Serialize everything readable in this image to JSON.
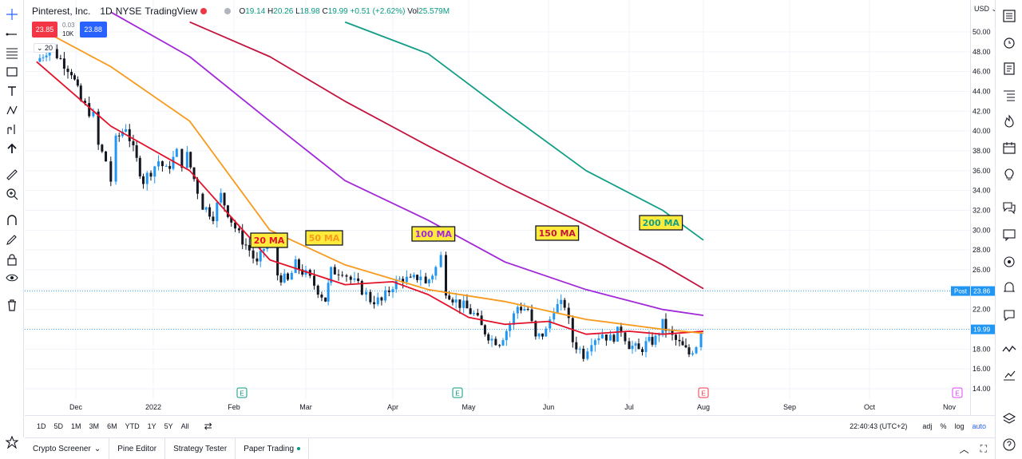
{
  "legend": {
    "symbol": "Pinterest, Inc.",
    "interval": "1D",
    "exchange": "NYSE",
    "source": "TradingView",
    "open_label": "O",
    "open": "19.14",
    "high_label": "H",
    "high": "20.26",
    "low_label": "L",
    "low": "18.98",
    "close_label": "C",
    "close": "19.99",
    "change": "+0.51 (+2.62%)",
    "vol_label": "Vol",
    "volume": "25.579M"
  },
  "trade_widget": {
    "sell": "23.85",
    "spread": "0.03",
    "qty": "10K",
    "buy": "23.88"
  },
  "indicator_chip": "20",
  "currency": "USD",
  "price_axis": [
    "50.00",
    "48.00",
    "46.00",
    "44.00",
    "42.00",
    "40.00",
    "38.00",
    "36.00",
    "34.00",
    "32.00",
    "30.00",
    "28.00",
    "26.00",
    "24.00",
    "22.00",
    "20.00",
    "18.00",
    "16.00",
    "14.00"
  ],
  "post_label": "Post",
  "post_price": "23.86",
  "last_price": "19.99",
  "time_axis": [
    "Dec",
    "2022",
    "Feb",
    "Mar",
    "Apr",
    "May",
    "Jun",
    "Jul",
    "Aug",
    "Sep",
    "Oct",
    "Nov"
  ],
  "earnings_marker": "E",
  "ma_labels": [
    "20 MA",
    "50 MA",
    "100 MA",
    "150 MA",
    "200 MA"
  ],
  "colors": {
    "ma20": "#e3112a",
    "ma50": "#f89a1d",
    "ma100": "#a228d8",
    "ma150": "#c2143e",
    "ma200": "#129e86",
    "up": "#2196f3",
    "down": "#131722"
  },
  "ranges": [
    "1D",
    "5D",
    "1M",
    "3M",
    "6M",
    "YTD",
    "1Y",
    "5Y",
    "All"
  ],
  "clock": "22:40:43 (UTC+2)",
  "scale_options": [
    "adj",
    "%",
    "log",
    "auto"
  ],
  "tabs": [
    "Crypto Screener",
    "Pine Editor",
    "Strategy Tester",
    "Paper Trading"
  ],
  "chart_data": {
    "type": "candlestick",
    "ylim": [
      13,
      52
    ],
    "series": [
      {
        "name": "20 MA",
        "x": [
          "Nov-22",
          "Dec-15",
          "Jan-15",
          "Feb-01",
          "Feb-15",
          "Mar-15",
          "Apr-01",
          "Apr-15",
          "May-01",
          "May-15",
          "Jun-01",
          "Jun-15",
          "Jul-01",
          "Jul-15",
          "Aug-01"
        ],
        "y": [
          47,
          40.5,
          36,
          31,
          27,
          24.5,
          24.8,
          23.5,
          21.2,
          20.5,
          20.8,
          19.5,
          19.8,
          19.5,
          19.8
        ]
      },
      {
        "name": "50 MA",
        "x": [
          "Nov-22",
          "Dec-15",
          "Jan-15",
          "Feb-15",
          "Mar-15",
          "Apr-15",
          "May-15",
          "Jun-15",
          "Jul-15",
          "Aug-01"
        ],
        "y": [
          50.5,
          46.5,
          41,
          30,
          26.5,
          24,
          22.8,
          21,
          20,
          19.6
        ]
      },
      {
        "name": "100 MA",
        "x": [
          "Dec-15",
          "Jan-15",
          "Feb-15",
          "Mar-15",
          "Apr-15",
          "May-15",
          "Jun-15",
          "Jul-15",
          "Aug-01"
        ],
        "y": [
          52,
          47.5,
          41,
          35,
          31,
          26.8,
          24,
          22,
          21.4
        ]
      },
      {
        "name": "150 MA",
        "x": [
          "Jan-15",
          "Feb-15",
          "Mar-15",
          "Apr-15",
          "May-15",
          "Jun-15",
          "Jul-15",
          "Aug-01"
        ],
        "y": [
          51,
          47.5,
          43,
          38.5,
          34.5,
          30.5,
          26.5,
          24.1
        ]
      },
      {
        "name": "200 MA",
        "x": [
          "Mar-15",
          "Apr-15",
          "May-15",
          "Jun-15",
          "Jul-15",
          "Aug-01"
        ],
        "y": [
          51,
          47.8,
          42,
          36,
          32,
          29
        ]
      }
    ]
  }
}
